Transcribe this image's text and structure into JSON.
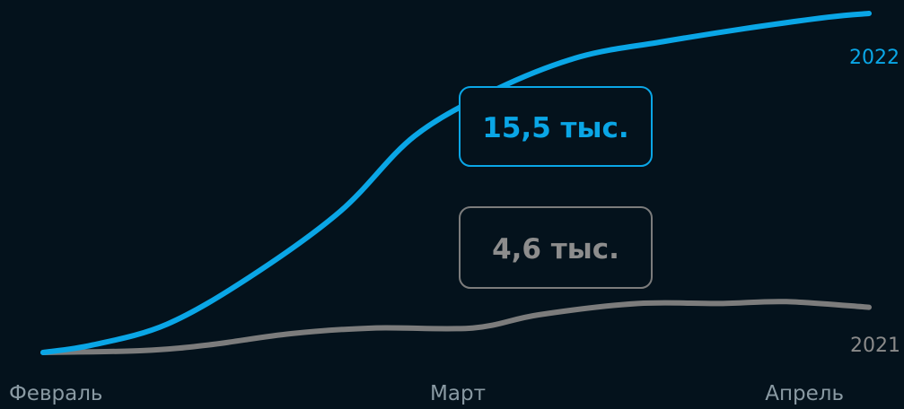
{
  "chart_data": {
    "type": "line",
    "x_categories": [
      "Февраль",
      "Март",
      "Апрель"
    ],
    "series": [
      {
        "name": "2022",
        "color": "#0aa6e6",
        "x": [
          0,
          0.06,
          0.15,
          0.25,
          0.36,
          0.45,
          0.55,
          0.65,
          0.75,
          0.85,
          0.95,
          1.0
        ],
        "values": [
          0,
          0.4,
          1.5,
          4.0,
          7.5,
          11.5,
          14.0,
          15.7,
          16.5,
          17.2,
          17.8,
          18.0
        ]
      },
      {
        "name": "2021",
        "color": "#7c7c7c",
        "x": [
          0,
          0.12,
          0.2,
          0.3,
          0.4,
          0.52,
          0.6,
          0.72,
          0.82,
          0.9,
          1.0
        ],
        "values": [
          0,
          0.1,
          0.4,
          1.0,
          1.3,
          1.3,
          2.0,
          2.6,
          2.6,
          2.7,
          2.4
        ]
      }
    ],
    "annotations": [
      {
        "series": "2022",
        "text": "15,5 тыс."
      },
      {
        "series": "2021",
        "text": "4,6 тыс."
      }
    ],
    "ylim": [
      0,
      18
    ],
    "grid": false,
    "legend": "series labels at line ends"
  }
}
